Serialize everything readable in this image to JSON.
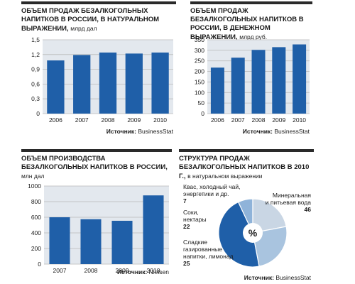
{
  "colors": {
    "bar": "#1f5fa8",
    "grid": "#b9b9b9",
    "plot_bg": "#e3e8ee",
    "text": "#1a1a1a",
    "pie": [
      "#8fb3d9",
      "#c9d6e4",
      "#a9c4df",
      "#1f5fa8"
    ]
  },
  "source_label": "Источник:",
  "chart_data": [
    {
      "type": "bar",
      "title": "ОБЪЕМ ПРОДАЖ БЕЗАЛКОГОЛЬНЫХ НАПИТКОВ В РОССИИ, В НАТУРАЛЬНОМ ВЫРАЖЕНИИ,",
      "unit": "млрд дал",
      "categories": [
        "2006",
        "2007",
        "2008",
        "2009",
        "2010"
      ],
      "values": [
        1.08,
        1.19,
        1.24,
        1.22,
        1.24
      ],
      "ylim": [
        0,
        1.5
      ],
      "ticks": [
        "0",
        "0,3",
        "0,6",
        "0,9",
        "1,2",
        "1,5"
      ],
      "tick_values": [
        0,
        0.3,
        0.6,
        0.9,
        1.2,
        1.5
      ],
      "source": "BusinessStat"
    },
    {
      "type": "bar",
      "title": "ОБЪЕМ ПРОДАЖ БЕЗАЛКОГОЛЬНЫХ НАПИТКОВ В РОССИИ, В ДЕНЕЖНОМ ВЫРАЖЕНИИ,",
      "unit": "млрд руб.",
      "categories": [
        "2006",
        "2007",
        "2008",
        "2009",
        "2010"
      ],
      "values": [
        218,
        265,
        302,
        315,
        328
      ],
      "ylim": [
        0,
        350
      ],
      "ticks": [
        "0",
        "50",
        "100",
        "150",
        "200",
        "250",
        "300",
        "350"
      ],
      "tick_values": [
        0,
        50,
        100,
        150,
        200,
        250,
        300,
        350
      ],
      "source": "BusinessStat"
    },
    {
      "type": "bar",
      "title": "ОБЪЕМ ПРОИЗВОДСТВА БЕЗАЛКОГОЛЬНЫХ НАПИТКОВ В РОССИИ,",
      "unit": "млн дал",
      "categories": [
        "2007",
        "2008",
        "2009",
        "2010"
      ],
      "values": [
        600,
        575,
        555,
        880
      ],
      "ylim": [
        0,
        1000
      ],
      "ticks": [
        "0",
        "200",
        "400",
        "600",
        "800",
        "1000"
      ],
      "tick_values": [
        0,
        200,
        400,
        600,
        800,
        1000
      ],
      "source": "Nielsen"
    },
    {
      "type": "pie",
      "title": "СТРУКТУРА ПРОДАЖ БЕЗАЛКОГОЛЬНЫХ НАПИТКОВ В 2010 Г.,",
      "unit": "в натуральном выражении",
      "center_label": "%",
      "slices": [
        {
          "label": "Квас, холодный чай, энергетики и др.",
          "value": 7
        },
        {
          "label": "Соки, нектары",
          "value": 22
        },
        {
          "label": "Сладкие газированные напитки, лимонад",
          "value": 25
        },
        {
          "label": "Минеральная и питьевая вода",
          "value": 46
        }
      ],
      "source": "BusinessStat"
    }
  ]
}
